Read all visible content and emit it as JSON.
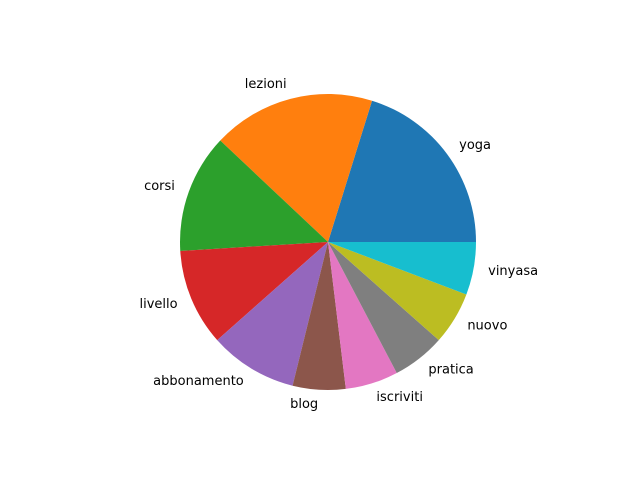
{
  "chart_data": {
    "type": "pie",
    "title": "",
    "start_angle": 0,
    "direction": "counterclockwise",
    "slices": [
      {
        "label": "yoga",
        "value": 21,
        "color": "#1f77b4"
      },
      {
        "label": "lezioni",
        "value": 18.5,
        "color": "#ff7f0e"
      },
      {
        "label": "corsi",
        "value": 13.5,
        "color": "#2ca02c"
      },
      {
        "label": "livello",
        "value": 11,
        "color": "#d62728"
      },
      {
        "label": "abbonamento",
        "value": 10,
        "color": "#9467bd"
      },
      {
        "label": "blog",
        "value": 6,
        "color": "#8c564b"
      },
      {
        "label": "iscriviti",
        "value": 6,
        "color": "#e377c2"
      },
      {
        "label": "pratica",
        "value": 6,
        "color": "#7f7f7f"
      },
      {
        "label": "nuovo",
        "value": 6,
        "color": "#bcbd22"
      },
      {
        "label": "vinyasa",
        "value": 6,
        "color": "#17becf"
      }
    ]
  }
}
